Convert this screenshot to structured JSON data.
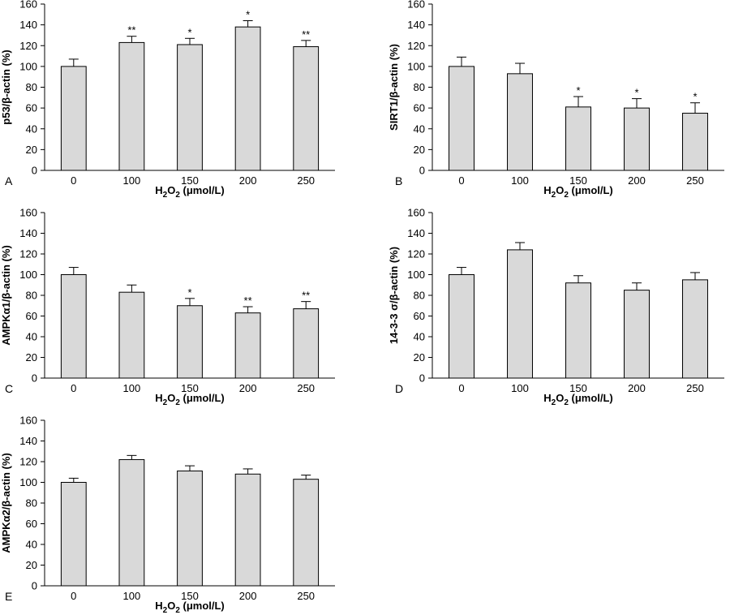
{
  "chart_data": [
    {
      "panel": "A",
      "type": "bar",
      "categories": [
        "0",
        "100",
        "150",
        "200",
        "250"
      ],
      "values": [
        100,
        123,
        121,
        138,
        119
      ],
      "errors": [
        7,
        6,
        6,
        6,
        6
      ],
      "significance": [
        "",
        "**",
        "*",
        "*",
        "**"
      ],
      "xlabel": "H2O2 (μmol/L)",
      "ylabel": "p53/β-actin (%)",
      "ylim": [
        0,
        160
      ],
      "yticks": [
        "0",
        "20",
        "40",
        "60",
        "80",
        "100",
        "120",
        "140",
        "160"
      ],
      "bar_color": "#d9d9d9",
      "grid": false
    },
    {
      "panel": "B",
      "type": "bar",
      "categories": [
        "0",
        "100",
        "150",
        "200",
        "250"
      ],
      "values": [
        100,
        93,
        61,
        60,
        55
      ],
      "errors": [
        9,
        10,
        10,
        9,
        10
      ],
      "significance": [
        "",
        "",
        "*",
        "*",
        "*"
      ],
      "xlabel": "H2O2 (μmol/L)",
      "ylabel": "SIRT1/β-actin (%)",
      "ylim": [
        0,
        160
      ],
      "yticks": [
        "0",
        "20",
        "40",
        "60",
        "80",
        "100",
        "120",
        "140",
        "160"
      ],
      "bar_color": "#d9d9d9",
      "grid": false
    },
    {
      "panel": "C",
      "type": "bar",
      "categories": [
        "0",
        "100",
        "150",
        "200",
        "250"
      ],
      "values": [
        100,
        83,
        70,
        63,
        67
      ],
      "errors": [
        7,
        7,
        7,
        6,
        7
      ],
      "significance": [
        "",
        "",
        "*",
        "**",
        "**"
      ],
      "xlabel": "H2O2 (μmol/L)",
      "ylabel": "AMPKα1/β-actin (%)",
      "ylim": [
        0,
        160
      ],
      "yticks": [
        "0",
        "20",
        "40",
        "60",
        "80",
        "100",
        "120",
        "140",
        "160"
      ],
      "bar_color": "#d9d9d9",
      "grid": false
    },
    {
      "panel": "D",
      "type": "bar",
      "categories": [
        "0",
        "100",
        "150",
        "200",
        "250"
      ],
      "values": [
        100,
        124,
        92,
        85,
        95
      ],
      "errors": [
        7,
        7,
        7,
        7,
        7
      ],
      "significance": [
        "",
        "",
        "",
        "",
        ""
      ],
      "xlabel": "H2O2 (μmol/L)",
      "ylabel": "14-3-3 σ/β-actin (%)",
      "ylim": [
        0,
        160
      ],
      "yticks": [
        "0",
        "20",
        "40",
        "60",
        "80",
        "100",
        "120",
        "140",
        "160"
      ],
      "bar_color": "#d9d9d9",
      "grid": false
    },
    {
      "panel": "E",
      "type": "bar",
      "categories": [
        "0",
        "100",
        "150",
        "200",
        "250"
      ],
      "values": [
        100,
        122,
        111,
        108,
        103
      ],
      "errors": [
        4,
        4,
        5,
        5,
        4
      ],
      "significance": [
        "",
        "",
        "",
        "",
        ""
      ],
      "xlabel": "H2O2 (μmol/L)",
      "ylabel": "AMPKα2/β-actin (%)",
      "ylim": [
        0,
        160
      ],
      "yticks": [
        "0",
        "20",
        "40",
        "60",
        "80",
        "100",
        "120",
        "140",
        "160"
      ],
      "bar_color": "#d9d9d9",
      "grid": false
    }
  ]
}
